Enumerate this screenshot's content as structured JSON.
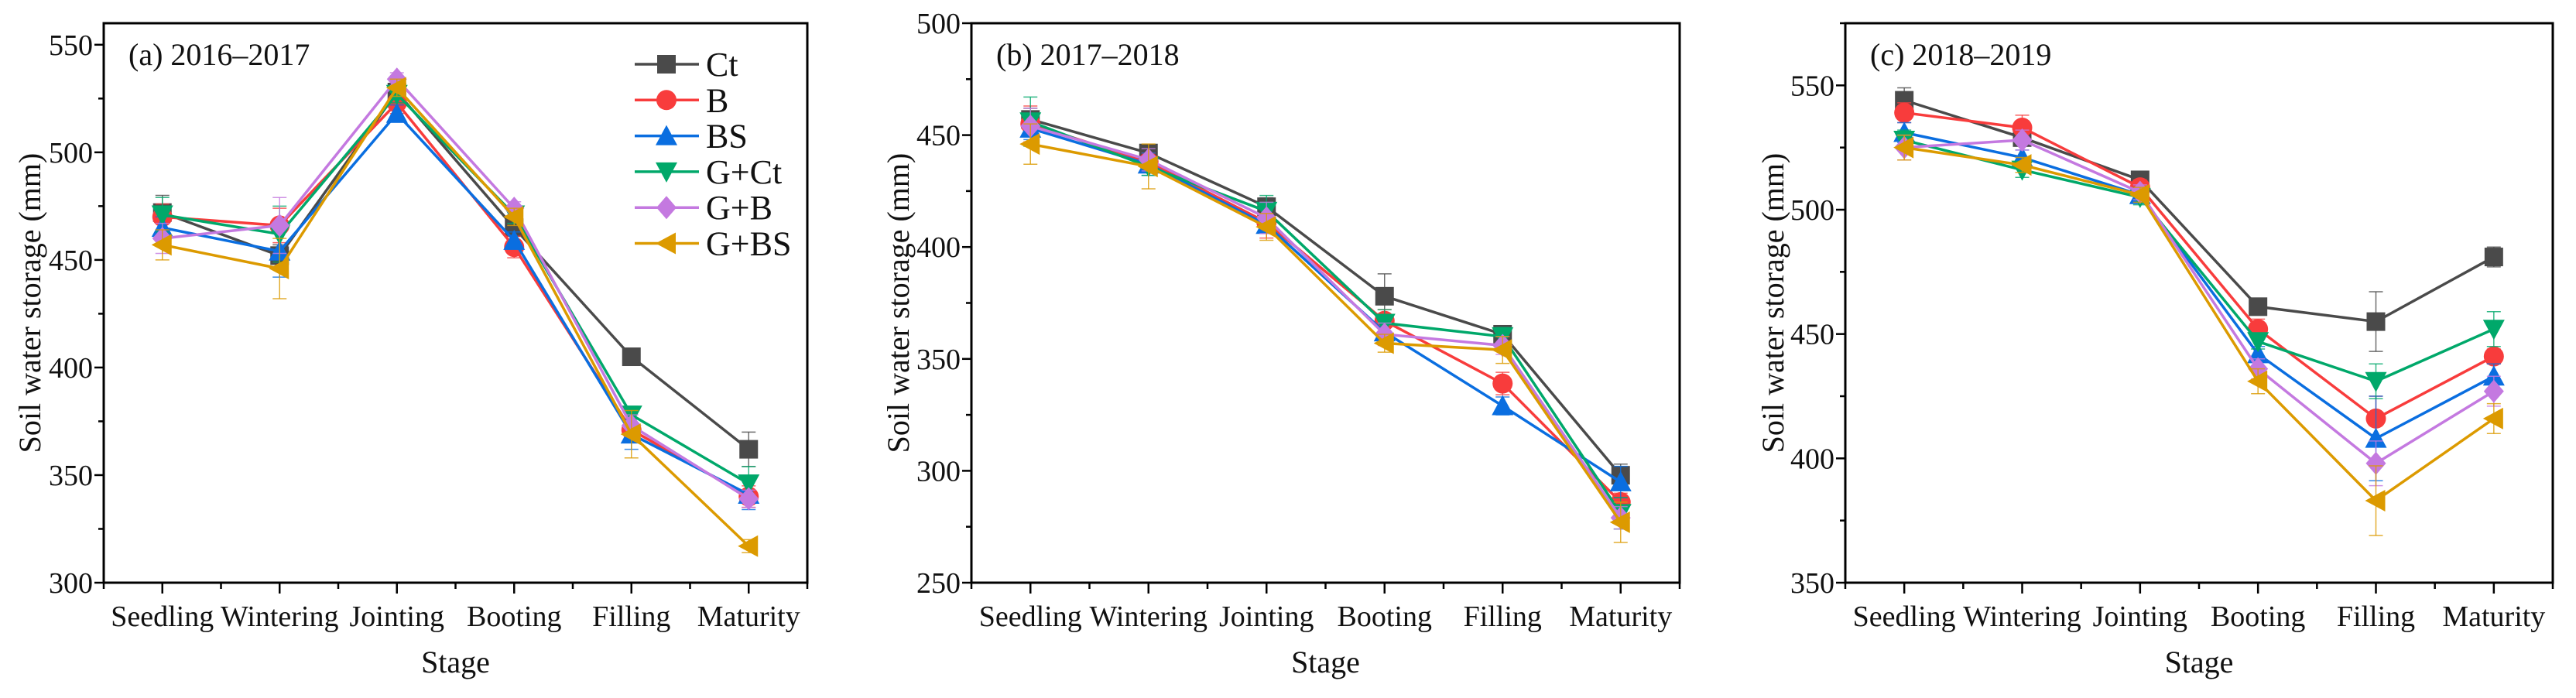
{
  "chart_data": [
    {
      "type": "line",
      "title": "(a) 2016–2017",
      "xlabel": "Stage",
      "ylabel": "Soil water storage (mm)",
      "categories": [
        "Seedling",
        "Wintering",
        "Jointing",
        "Booting",
        "Filling",
        "Maturity"
      ],
      "ylim": [
        300,
        560
      ],
      "yticks": [
        300,
        350,
        400,
        450,
        500,
        550
      ],
      "legend": "top-right",
      "series": [
        {
          "name": "Ct",
          "values": [
            472,
            452,
            528,
            465,
            405,
            362
          ],
          "err": [
            8,
            5,
            4,
            4,
            2,
            8
          ]
        },
        {
          "name": "B",
          "values": [
            470,
            466,
            523,
            456,
            371,
            340
          ],
          "err": [
            6,
            8,
            5,
            5,
            5,
            5
          ]
        },
        {
          "name": "BS",
          "values": [
            465,
            454,
            518,
            459,
            369,
            341
          ],
          "err": [
            5,
            12,
            4,
            4,
            7,
            7
          ]
        },
        {
          "name": "G+Ct",
          "values": [
            471,
            462,
            527,
            471,
            378,
            346
          ],
          "err": [
            8,
            13,
            4,
            4,
            4,
            8
          ]
        },
        {
          "name": "G+B",
          "values": [
            460,
            466,
            534,
            474,
            373,
            339
          ],
          "err": [
            7,
            13,
            3,
            3,
            5,
            4
          ]
        },
        {
          "name": "G+BS",
          "values": [
            457,
            446,
            530,
            470,
            369,
            317
          ],
          "err": [
            7,
            14,
            4,
            4,
            11,
            3
          ]
        }
      ]
    },
    {
      "type": "line",
      "title": "(b) 2017–2018",
      "xlabel": "Stage",
      "ylabel": "Soil water storage (mm)",
      "categories": [
        "Seedling",
        "Wintering",
        "Jointing",
        "Booting",
        "Filling",
        "Maturity"
      ],
      "ylim": [
        250,
        500
      ],
      "yticks": [
        250,
        300,
        350,
        400,
        450,
        500
      ],
      "series": [
        {
          "name": "Ct",
          "values": [
            457,
            442,
            418,
            378,
            361,
            298
          ],
          "err": [
            5,
            3,
            4,
            10,
            3,
            5
          ]
        },
        {
          "name": "B",
          "values": [
            455,
            438,
            411,
            367,
            339,
            286
          ],
          "err": [
            8,
            4,
            7,
            5,
            5,
            4
          ]
        },
        {
          "name": "BS",
          "values": [
            453,
            437,
            410,
            362,
            329,
            295
          ],
          "err": [
            5,
            5,
            3,
            4,
            4,
            7
          ]
        },
        {
          "name": "G+Ct",
          "values": [
            456,
            436,
            416,
            366,
            360,
            281
          ],
          "err": [
            11,
            4,
            7,
            6,
            4,
            7
          ]
        },
        {
          "name": "G+B",
          "values": [
            454,
            439,
            413,
            361,
            356,
            279
          ],
          "err": [
            8,
            5,
            7,
            5,
            4,
            5
          ]
        },
        {
          "name": "G+BS",
          "values": [
            446,
            436,
            409,
            357,
            354,
            277
          ],
          "err": [
            9,
            10,
            6,
            4,
            6,
            9
          ]
        }
      ]
    },
    {
      "type": "line",
      "title": "(c) 2018–2019",
      "xlabel": "Stage",
      "ylabel": "Soil water storage (mm)",
      "categories": [
        "Seedling",
        "Wintering",
        "Jointing",
        "Booting",
        "Filling",
        "Maturity"
      ],
      "ylim": [
        350,
        575
      ],
      "yticks": [
        350,
        400,
        450,
        500,
        550
      ],
      "series": [
        {
          "name": "Ct",
          "values": [
            544,
            529,
            512,
            461,
            455,
            481
          ],
          "err": [
            5,
            3,
            3,
            2,
            12,
            4
          ]
        },
        {
          "name": "B",
          "values": [
            539,
            533,
            509,
            452,
            416,
            441
          ],
          "err": [
            4,
            5,
            3,
            4,
            9,
            3
          ]
        },
        {
          "name": "BS",
          "values": [
            531,
            521,
            506,
            442,
            408,
            433
          ],
          "err": [
            4,
            3,
            3,
            3,
            17,
            5
          ]
        },
        {
          "name": "G+Ct",
          "values": [
            528,
            516,
            505,
            447,
            431,
            452
          ],
          "err": [
            4,
            3,
            3,
            3,
            7,
            7
          ]
        },
        {
          "name": "G+B",
          "values": [
            525,
            528,
            507,
            436,
            398,
            427
          ],
          "err": [
            5,
            4,
            3,
            4,
            9,
            6
          ]
        },
        {
          "name": "G+BS",
          "values": [
            525,
            518,
            506,
            431,
            383,
            416
          ],
          "err": [
            5,
            3,
            3,
            5,
            14,
            6
          ]
        }
      ]
    }
  ],
  "series_style": {
    "Ct": {
      "color": "#4a4a4a",
      "marker": "square"
    },
    "B": {
      "color": "#f83c3c",
      "marker": "circle"
    },
    "BS": {
      "color": "#0a6ee0",
      "marker": "triangle-up"
    },
    "G+Ct": {
      "color": "#00a86a",
      "marker": "triangle-down"
    },
    "G+B": {
      "color": "#c479e0",
      "marker": "diamond"
    },
    "G+BS": {
      "color": "#dc9a00",
      "marker": "triangle-left"
    }
  }
}
